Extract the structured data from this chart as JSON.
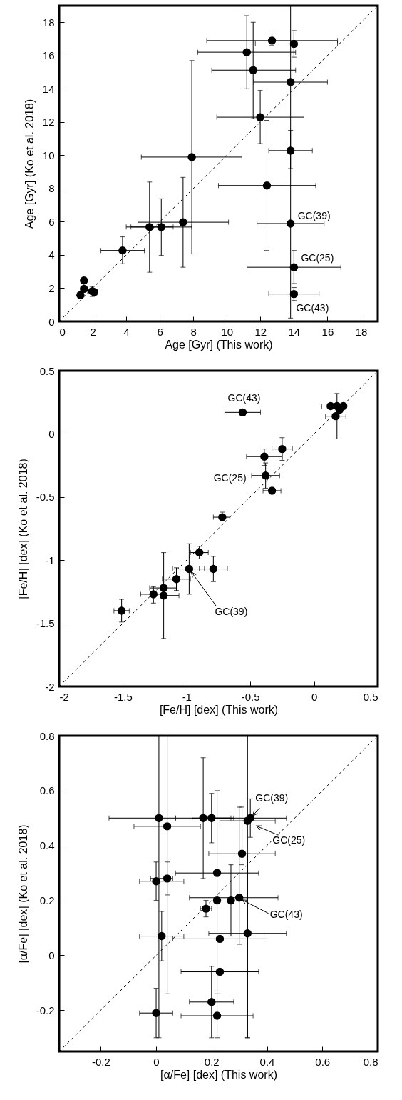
{
  "chart_data": [
    {
      "type": "scatter",
      "xlabel": "Age [Gyr] (This work)",
      "ylabel": "Age [Gyr] (Ko et al. 2018)",
      "xlim": [
        0,
        19
      ],
      "ylim": [
        0,
        19
      ],
      "xticks": [
        0,
        2,
        4,
        6,
        8,
        10,
        12,
        14,
        16,
        18
      ],
      "yticks": [
        0,
        2,
        4,
        6,
        8,
        10,
        12,
        14,
        16,
        18
      ],
      "series": [
        {
          "type": "line",
          "color": "#000000",
          "line_style": "dashed",
          "x": [
            0,
            19
          ],
          "values": [
            0,
            19
          ]
        },
        {
          "color": "#000000",
          "marker": "circle",
          "x": [
            1.27,
            1.48,
            1.48,
            1.97,
            2.1,
            3.78,
            5.39,
            6.09,
            7.39,
            7.91,
            11.19,
            11.57,
            11.99,
            12.39,
            12.69,
            13.8,
            13.8,
            13.8,
            14.0,
            14.0,
            14.0
          ],
          "values": [
            1.58,
            1.96,
            2.46,
            1.82,
            1.76,
            4.27,
            5.68,
            5.68,
            5.97,
            9.89,
            16.2,
            15.12,
            12.29,
            8.18,
            16.9,
            14.4,
            10.28,
            5.89,
            16.7,
            3.26,
            1.65
          ],
          "errors": [
            null,
            null,
            null,
            [
              1.5,
              2.1
            ],
            null,
            [
              3.47,
              5.09
            ],
            [
              2.96,
              8.39
            ],
            [
              3.97,
              7.38
            ],
            [
              3.26,
              8.67
            ],
            [
              4.06,
              15.7
            ],
            [
              14.0,
              18.4
            ],
            [
              12.2,
              18.0
            ],
            [
              10.7,
              13.9
            ],
            [
              4.27,
              12.1
            ],
            [
              16.6,
              17.3
            ],
            null,
            [
              9.2,
              11.5
            ],
            [
              0.2,
              19
            ],
            [
              15.9,
              17.5
            ],
            [
              2.28,
              4.27
            ],
            [
              1.26,
              2.04
            ]
          ],
          "xerrors": [
            null,
            null,
            null,
            [
              1.7,
              2.3
            ],
            null,
            [
              2.49,
              5.08
            ],
            [
              4.28,
              7.91
            ],
            [
              4.0,
              6.8
            ],
            [
              4.7,
              10.1
            ],
            [
              4.9,
              10.9
            ],
            [
              8.27,
              14.1
            ],
            [
              9.1,
              14.1
            ],
            [
              9.4,
              14.6
            ],
            [
              9.5,
              15.3
            ],
            [
              8.8,
              16.6
            ],
            [
              11.6,
              16.0
            ],
            [
              12.5,
              15.1
            ],
            [
              11.8,
              15.8
            ],
            [
              11.7,
              16.6
            ],
            [
              11.2,
              16.8
            ],
            [
              12.5,
              15.5
            ]
          ]
        }
      ],
      "annotations": [
        {
          "text": "GC(39)",
          "x": 13.8,
          "y": 5.89
        },
        {
          "text": "GC(25)",
          "x": 14.0,
          "y": 3.26
        },
        {
          "text": "GC(43)",
          "x": 14.0,
          "y": 1.65
        }
      ]
    },
    {
      "type": "scatter",
      "xlabel": "[Fe/H] [dex] (This work)",
      "ylabel": "[Fe/H] [dex] (Ko et al. 2018)",
      "xlim": [
        -2,
        0.5
      ],
      "ylim": [
        -2,
        0.5
      ],
      "xticks": [
        -2,
        -1.5,
        -1,
        -0.5,
        0,
        0.5
      ],
      "yticks": [
        -2,
        -1.5,
        -1,
        -0.5,
        0,
        0.5
      ],
      "series": [
        {
          "type": "line",
          "color": "#000000",
          "line_style": "dashed",
          "x": [
            -2,
            0.5
          ],
          "values": [
            -2,
            0.5
          ]
        },
        {
          "color": "#000000",
          "marker": "circle",
          "x": [
            -0.56,
            0.13,
            0.18,
            0.23,
            0.2,
            0.17,
            -0.25,
            -0.39,
            -0.38,
            -0.33,
            -0.72,
            -0.9,
            -0.98,
            -0.79,
            -1.08,
            -1.18,
            -1.18,
            -1.26,
            -1.51
          ],
          "values": [
            0.17,
            0.22,
            0.22,
            0.22,
            0.19,
            0.14,
            -0.12,
            -0.18,
            -0.33,
            -0.45,
            -0.66,
            -0.94,
            -1.07,
            -1.07,
            -1.15,
            -1.22,
            -1.28,
            -1.27,
            -1.4
          ],
          "errors": [
            null,
            null,
            [
              -0.04,
              0.32
            ],
            null,
            null,
            null,
            [
              -0.21,
              -0.03
            ],
            [
              -0.25,
              -0.12
            ],
            [
              -0.43,
              -0.23
            ],
            null,
            [
              -0.69,
              -0.62
            ],
            [
              -0.99,
              -0.89
            ],
            [
              -1.27,
              -0.87
            ],
            [
              -1.17,
              -0.97
            ],
            [
              -1.24,
              -1.06
            ],
            null,
            [
              -1.62,
              -0.94
            ],
            [
              -1.34,
              -1.21
            ],
            [
              -1.49,
              -1.31
            ]
          ],
          "xerrors": [
            [
              -0.7,
              -0.42
            ],
            [
              0.06,
              0.13
            ],
            null,
            null,
            null,
            [
              0.09,
              0.25
            ],
            [
              -0.33,
              -0.17
            ],
            [
              -0.53,
              -0.25
            ],
            [
              -0.49,
              -0.27
            ],
            [
              -0.4,
              -0.26
            ],
            [
              -0.79,
              -0.66
            ],
            [
              -0.97,
              -0.83
            ],
            [
              -1.11,
              -0.86
            ],
            [
              -0.9,
              -0.68
            ],
            [
              -1.19,
              -0.97
            ],
            [
              -1.29,
              -1.08
            ],
            [
              -1.18,
              -1.06
            ],
            [
              -1.36,
              -1.18
            ],
            [
              -1.57,
              -1.45
            ]
          ]
        }
      ],
      "annotations": [
        {
          "text": "GC(43)",
          "x": -0.56,
          "y": 0.17
        },
        {
          "text": "GC(25)",
          "x": -0.38,
          "y": -0.33
        },
        {
          "text": "GC(39)",
          "x": -0.98,
          "y": -1.07
        }
      ]
    },
    {
      "type": "scatter",
      "xlabel": "[α/Fe] [dex] (This work)",
      "ylabel": "[α/Fe] [dex] (Ko et al. 2018)",
      "xlim": [
        -0.35,
        0.8
      ],
      "ylim": [
        -0.35,
        0.8
      ],
      "xticks": [
        -0.2,
        0,
        0.2,
        0.4,
        0.6,
        0.8
      ],
      "yticks": [
        -0.2,
        0,
        0.2,
        0.4,
        0.6,
        0.8
      ],
      "series": [
        {
          "type": "line",
          "color": "#000000",
          "line_style": "dashed",
          "x": [
            -0.35,
            0.8
          ],
          "values": [
            -0.35,
            0.8
          ]
        },
        {
          "color": "#000000",
          "marker": "circle",
          "x": [
            0.01,
            0.17,
            0.2,
            0.34,
            0.33,
            0.04,
            0.31,
            0.22,
            0.04,
            0.0,
            0.22,
            0.27,
            0.3,
            0.18,
            0.33,
            0.02,
            0.23,
            0.23,
            0.2,
            0.22,
            0.0
          ],
          "values": [
            0.5,
            0.5,
            0.5,
            0.5,
            0.49,
            0.47,
            0.37,
            0.3,
            0.28,
            0.27,
            0.2,
            0.2,
            0.21,
            0.17,
            0.08,
            0.07,
            0.06,
            -0.06,
            -0.17,
            -0.22,
            -0.21
          ],
          "errors": [
            [
              -0.3,
              0.8
            ],
            [
              0.28,
              0.72
            ],
            [
              0.41,
              0.59
            ],
            [
              0.43,
              0.57
            ],
            [
              -0.3,
              0.8
            ],
            [
              -0.14,
              0.8
            ],
            [
              0.33,
              0.54
            ],
            [
              -0.13,
              0.6
            ],
            [
              0.22,
              0.34
            ],
            [
              0.2,
              0.34
            ],
            null,
            [
              0.07,
              0.33
            ],
            [
              0.04,
              0.54
            ],
            [
              0.14,
              0.2
            ],
            [
              -0.3,
              0.37
            ],
            [
              -0.02,
              0.16
            ],
            null,
            null,
            [
              -0.3,
              -0.04
            ],
            [
              -0.3,
              -0.14
            ],
            [
              -0.3,
              -0.12
            ]
          ],
          "xerrors": [
            [
              -0.17,
              0.07
            ],
            [
              0.07,
              0.27
            ],
            [
              0.13,
              0.28
            ],
            [
              0.16,
              0.47
            ],
            [
              0.23,
              0.43
            ],
            [
              -0.08,
              0.16
            ],
            [
              0.19,
              0.43
            ],
            [
              0.07,
              0.37
            ],
            [
              -0.02,
              0.06
            ],
            [
              -0.06,
              0.1
            ],
            null,
            null,
            [
              0.12,
              0.44
            ],
            [
              0.16,
              0.2
            ],
            [
              0.19,
              0.47
            ],
            [
              -0.06,
              0.1
            ],
            [
              0.06,
              0.4
            ],
            [
              0.09,
              0.37
            ],
            [
              0.12,
              0.28
            ],
            [
              0.09,
              0.35
            ],
            [
              -0.06,
              0.06
            ]
          ]
        }
      ],
      "annotations": [
        {
          "text": "GC(39)",
          "x": 0.34,
          "y": 0.5
        },
        {
          "text": "GC(25)",
          "x": 0.33,
          "y": 0.49
        },
        {
          "text": "GC(43)",
          "x": 0.3,
          "y": 0.21
        }
      ]
    }
  ]
}
